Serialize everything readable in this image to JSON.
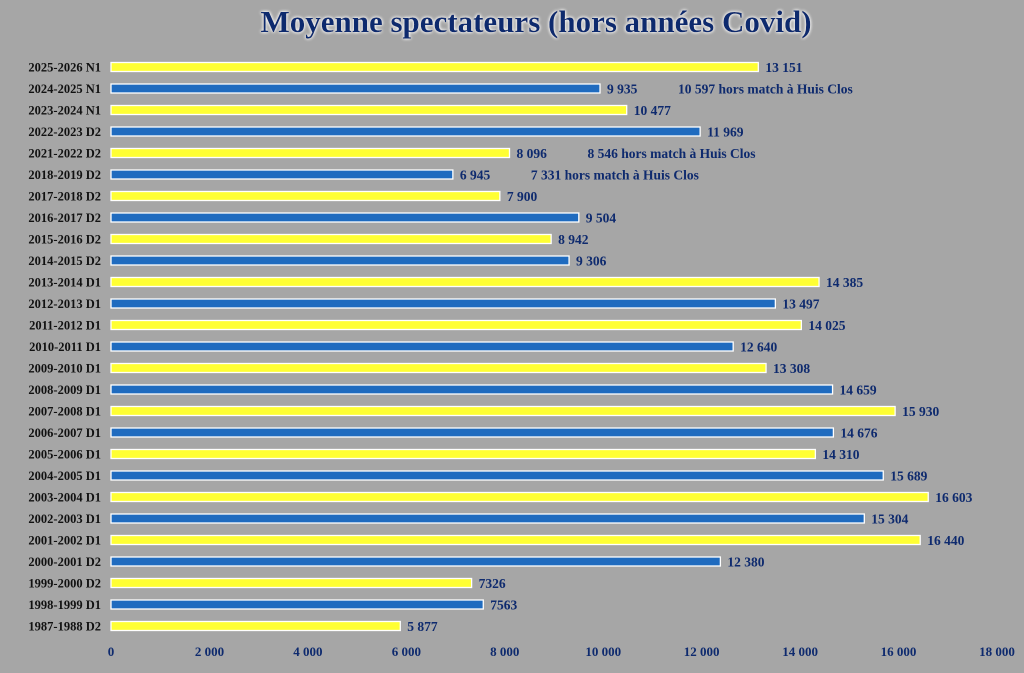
{
  "chart_data": {
    "type": "bar",
    "orientation": "horizontal",
    "title": "Moyenne spectateurs (hors années Covid)",
    "xlim": [
      0,
      18000
    ],
    "x_ticks": [
      "0",
      "2 000",
      "4 000",
      "6 000",
      "8 000",
      "10 000",
      "12 000",
      "14 000",
      "16 000",
      "18 000"
    ],
    "grid": false,
    "legend": "none",
    "colors": {
      "yellow": "#ffff33",
      "blue": "#1f6bbf",
      "text": "#0e2a6e",
      "background": "#a6a6a6"
    },
    "bars": [
      {
        "category": "2025-2026 N1",
        "value": 13151,
        "label": "13 151",
        "color": "yellow"
      },
      {
        "category": "2024-2025 N1",
        "value": 9935,
        "label": "9 935",
        "color": "blue",
        "note": "10 597 hors match à Huis Clos"
      },
      {
        "category": "2023-2024 N1",
        "value": 10477,
        "label": "10 477",
        "color": "yellow"
      },
      {
        "category": "2022-2023 D2",
        "value": 11969,
        "label": "11 969",
        "color": "blue"
      },
      {
        "category": "2021-2022 D2",
        "value": 8096,
        "label": "8 096",
        "color": "yellow",
        "note": "8 546 hors match à Huis Clos"
      },
      {
        "category": "2018-2019 D2",
        "value": 6945,
        "label": "6 945",
        "color": "blue",
        "note": "7 331 hors match à Huis Clos"
      },
      {
        "category": "2017-2018 D2",
        "value": 7900,
        "label": "7 900",
        "color": "yellow"
      },
      {
        "category": "2016-2017 D2",
        "value": 9504,
        "label": "9 504",
        "color": "blue"
      },
      {
        "category": "2015-2016 D2",
        "value": 8942,
        "label": "8 942",
        "color": "yellow"
      },
      {
        "category": "2014-2015 D2",
        "value": 9306,
        "label": "9 306",
        "color": "blue"
      },
      {
        "category": "2013-2014 D1",
        "value": 14385,
        "label": "14 385",
        "color": "yellow"
      },
      {
        "category": "2012-2013 D1",
        "value": 13497,
        "label": "13 497",
        "color": "blue"
      },
      {
        "category": "2011-2012 D1",
        "value": 14025,
        "label": "14 025",
        "color": "yellow"
      },
      {
        "category": "2010-2011 D1",
        "value": 12640,
        "label": "12 640",
        "color": "blue"
      },
      {
        "category": "2009-2010 D1",
        "value": 13308,
        "label": "13 308",
        "color": "yellow"
      },
      {
        "category": "2008-2009 D1",
        "value": 14659,
        "label": "14 659",
        "color": "blue"
      },
      {
        "category": "2007-2008 D1",
        "value": 15930,
        "label": "15 930",
        "color": "yellow"
      },
      {
        "category": "2006-2007 D1",
        "value": 14676,
        "label": "14 676",
        "color": "blue"
      },
      {
        "category": "2005-2006 D1",
        "value": 14310,
        "label": "14 310",
        "color": "yellow"
      },
      {
        "category": "2004-2005 D1",
        "value": 15689,
        "label": "15 689",
        "color": "blue"
      },
      {
        "category": "2003-2004 D1",
        "value": 16603,
        "label": "16 603",
        "color": "yellow"
      },
      {
        "category": "2002-2003 D1",
        "value": 15304,
        "label": "15 304",
        "color": "blue"
      },
      {
        "category": "2001-2002 D1",
        "value": 16440,
        "label": "16 440",
        "color": "yellow"
      },
      {
        "category": "2000-2001 D2",
        "value": 12380,
        "label": "12 380",
        "color": "blue"
      },
      {
        "category": "1999-2000 D2",
        "value": 7326,
        "label": "7326",
        "color": "yellow"
      },
      {
        "category": "1998-1999 D1",
        "value": 7563,
        "label": "7563",
        "color": "blue"
      },
      {
        "category": "1987-1988 D2",
        "value": 5877,
        "label": "5 877",
        "color": "yellow"
      }
    ]
  }
}
